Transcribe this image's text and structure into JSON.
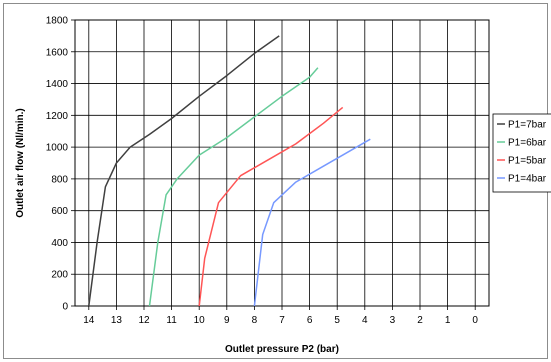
{
  "chart_data": {
    "type": "line",
    "title": "",
    "xlabel": "Outlet pressure P2 (bar)",
    "ylabel": "Outlet air flow (Nl/min.)",
    "x_reversed": true,
    "xlim": [
      14.5,
      -0.5
    ],
    "ylim": [
      0,
      1800
    ],
    "xticks": [
      14,
      13,
      12,
      11,
      10,
      9,
      8,
      7,
      6,
      5,
      4,
      3,
      2,
      1,
      0
    ],
    "yticks": [
      0,
      200,
      400,
      600,
      800,
      1000,
      1200,
      1400,
      1600,
      1800
    ],
    "grid": true,
    "legend_position": "right",
    "series": [
      {
        "name": "P1=7bar",
        "color": "#404040",
        "points": [
          [
            14.0,
            0
          ],
          [
            13.7,
            400
          ],
          [
            13.4,
            750
          ],
          [
            13.0,
            900
          ],
          [
            12.5,
            1000
          ],
          [
            11.8,
            1080
          ],
          [
            11.0,
            1180
          ],
          [
            10.0,
            1320
          ],
          [
            9.0,
            1450
          ],
          [
            8.0,
            1590
          ],
          [
            7.1,
            1700
          ]
        ]
      },
      {
        "name": "P1=6bar",
        "color": "#66cc99",
        "points": [
          [
            11.8,
            0
          ],
          [
            11.5,
            400
          ],
          [
            11.2,
            700
          ],
          [
            10.8,
            800
          ],
          [
            10.0,
            950
          ],
          [
            9.0,
            1060
          ],
          [
            8.0,
            1190
          ],
          [
            7.0,
            1320
          ],
          [
            6.0,
            1440
          ],
          [
            5.7,
            1500
          ]
        ]
      },
      {
        "name": "P1=5bar",
        "color": "#ff5555",
        "points": [
          [
            10.0,
            0
          ],
          [
            9.8,
            300
          ],
          [
            9.3,
            650
          ],
          [
            8.5,
            820
          ],
          [
            7.5,
            920
          ],
          [
            6.5,
            1020
          ],
          [
            5.5,
            1150
          ],
          [
            4.8,
            1250
          ]
        ]
      },
      {
        "name": "P1=4bar",
        "color": "#7799ff",
        "points": [
          [
            8.0,
            0
          ],
          [
            7.7,
            450
          ],
          [
            7.3,
            650
          ],
          [
            6.5,
            780
          ],
          [
            5.5,
            880
          ],
          [
            4.5,
            980
          ],
          [
            3.8,
            1050
          ]
        ]
      }
    ]
  }
}
